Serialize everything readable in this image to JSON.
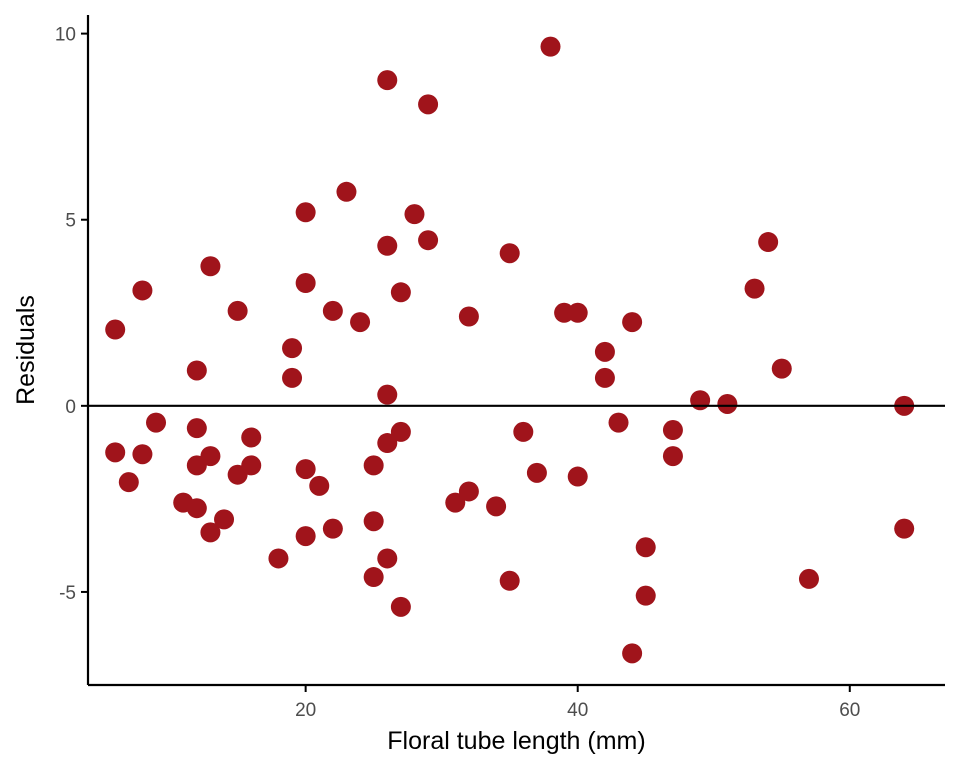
{
  "colors": {
    "point": "#A0141B",
    "axis": "#000000",
    "tick_text": "#4D4D4D",
    "background": "#FFFFFF"
  },
  "chart_data": {
    "type": "scatter",
    "title": "",
    "xlabel": "Floral tube length (mm)",
    "ylabel": "Residuals",
    "xlim": [
      4,
      67
    ],
    "ylim": [
      -7.5,
      10.5
    ],
    "xticks": [
      20,
      40,
      60
    ],
    "yticks": [
      -5,
      0,
      5,
      10
    ],
    "grid": false,
    "reference_line": {
      "y": 0
    },
    "points": [
      {
        "x": 6,
        "y": 2.05
      },
      {
        "x": 6,
        "y": -1.25
      },
      {
        "x": 7,
        "y": -2.05
      },
      {
        "x": 8,
        "y": 3.1
      },
      {
        "x": 8,
        "y": -1.3
      },
      {
        "x": 9,
        "y": -0.45
      },
      {
        "x": 11,
        "y": -2.6
      },
      {
        "x": 12,
        "y": 0.95
      },
      {
        "x": 12,
        "y": -0.6
      },
      {
        "x": 12,
        "y": -1.6
      },
      {
        "x": 12,
        "y": -2.75
      },
      {
        "x": 13,
        "y": 3.75
      },
      {
        "x": 13,
        "y": -1.35
      },
      {
        "x": 13,
        "y": -3.4
      },
      {
        "x": 14,
        "y": -3.05
      },
      {
        "x": 15,
        "y": 2.55
      },
      {
        "x": 15,
        "y": -1.85
      },
      {
        "x": 16,
        "y": -0.85
      },
      {
        "x": 16,
        "y": -1.6
      },
      {
        "x": 18,
        "y": -4.1
      },
      {
        "x": 19,
        "y": 1.55
      },
      {
        "x": 19,
        "y": 0.75
      },
      {
        "x": 20,
        "y": 5.2
      },
      {
        "x": 20,
        "y": 3.3
      },
      {
        "x": 20,
        "y": -1.7
      },
      {
        "x": 20,
        "y": -3.5
      },
      {
        "x": 21,
        "y": -2.15
      },
      {
        "x": 22,
        "y": 2.55
      },
      {
        "x": 22,
        "y": -3.3
      },
      {
        "x": 23,
        "y": 5.75
      },
      {
        "x": 24,
        "y": 2.25
      },
      {
        "x": 25,
        "y": -1.6
      },
      {
        "x": 25,
        "y": -3.1
      },
      {
        "x": 25,
        "y": -4.6
      },
      {
        "x": 26,
        "y": 8.75
      },
      {
        "x": 26,
        "y": 4.3
      },
      {
        "x": 26,
        "y": 0.3
      },
      {
        "x": 26,
        "y": -1.0
      },
      {
        "x": 26,
        "y": -4.1
      },
      {
        "x": 27,
        "y": 3.05
      },
      {
        "x": 27,
        "y": -0.7
      },
      {
        "x": 27,
        "y": -5.4
      },
      {
        "x": 28,
        "y": 5.15
      },
      {
        "x": 29,
        "y": 8.1
      },
      {
        "x": 29,
        "y": 4.45
      },
      {
        "x": 31,
        "y": -2.6
      },
      {
        "x": 32,
        "y": 2.4
      },
      {
        "x": 32,
        "y": -2.3
      },
      {
        "x": 34,
        "y": -2.7
      },
      {
        "x": 35,
        "y": 4.1
      },
      {
        "x": 35,
        "y": -4.7
      },
      {
        "x": 36,
        "y": -0.7
      },
      {
        "x": 37,
        "y": -1.8
      },
      {
        "x": 38,
        "y": 9.65
      },
      {
        "x": 39,
        "y": 2.5
      },
      {
        "x": 40,
        "y": 2.5
      },
      {
        "x": 40,
        "y": -1.9
      },
      {
        "x": 42,
        "y": 1.45
      },
      {
        "x": 42,
        "y": 0.75
      },
      {
        "x": 43,
        "y": -0.45
      },
      {
        "x": 44,
        "y": 2.25
      },
      {
        "x": 44,
        "y": -6.65
      },
      {
        "x": 45,
        "y": -3.8
      },
      {
        "x": 45,
        "y": -5.1
      },
      {
        "x": 47,
        "y": -0.65
      },
      {
        "x": 47,
        "y": -1.35
      },
      {
        "x": 49,
        "y": 0.15
      },
      {
        "x": 51,
        "y": 0.05
      },
      {
        "x": 53,
        "y": 3.15
      },
      {
        "x": 54,
        "y": 4.4
      },
      {
        "x": 55,
        "y": 1.0
      },
      {
        "x": 57,
        "y": -4.65
      },
      {
        "x": 64,
        "y": 0.0
      },
      {
        "x": 64,
        "y": -3.3
      }
    ]
  }
}
